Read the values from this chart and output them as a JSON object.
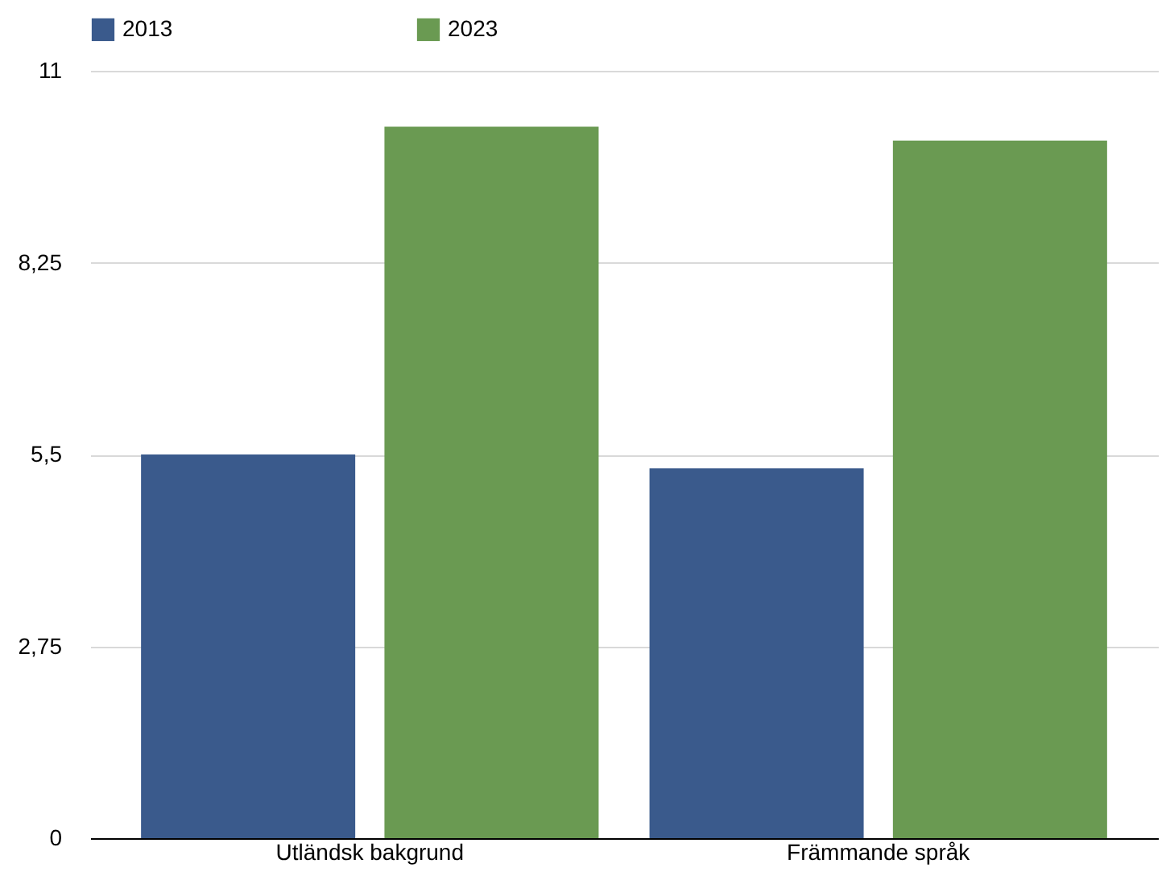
{
  "chart_data": {
    "type": "bar",
    "categories": [
      "Utländsk bakgrund",
      "Främmande språk"
    ],
    "series": [
      {
        "name": "2013",
        "color": "#3a5a8c",
        "values": [
          5.5,
          5.3
        ]
      },
      {
        "name": "2023",
        "color": "#6a9a52",
        "values": [
          10.2,
          10.0
        ]
      }
    ],
    "ylim": [
      0,
      11
    ],
    "yticks": [
      0,
      {
        "value": 2.75,
        "label": "2,75"
      },
      {
        "value": 5.5,
        "label": "5,5"
      },
      {
        "value": 8.25,
        "label": "8,25"
      },
      11
    ],
    "grid": "y",
    "legend": "top"
  }
}
